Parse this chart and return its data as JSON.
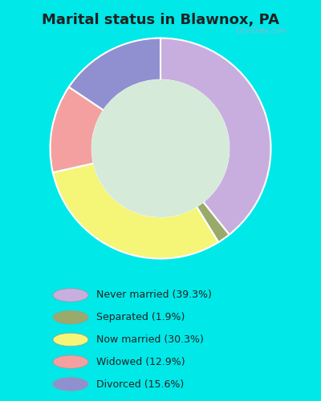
{
  "title": "Marital status in Blawnox, PA",
  "values": [
    39.3,
    1.9,
    30.3,
    12.9,
    15.6
  ],
  "colors": [
    "#c8aede",
    "#9aaa6a",
    "#f5f577",
    "#f4a0a0",
    "#9090d0"
  ],
  "legend_labels": [
    "Never married (39.3%)",
    "Separated (1.9%)",
    "Now married (30.3%)",
    "Widowed (12.9%)",
    "Divorced (15.6%)"
  ],
  "legend_colors": [
    "#c8aede",
    "#9aaa6a",
    "#f5f577",
    "#f4a0a0",
    "#9090d0"
  ],
  "bg_color_outer": "#00e8e8",
  "bg_color_chart": "#d5ead8",
  "title_fontsize": 13,
  "title_color": "#222222",
  "watermark": "City-Data.com",
  "start_angle": 90,
  "donut_width": 0.38
}
